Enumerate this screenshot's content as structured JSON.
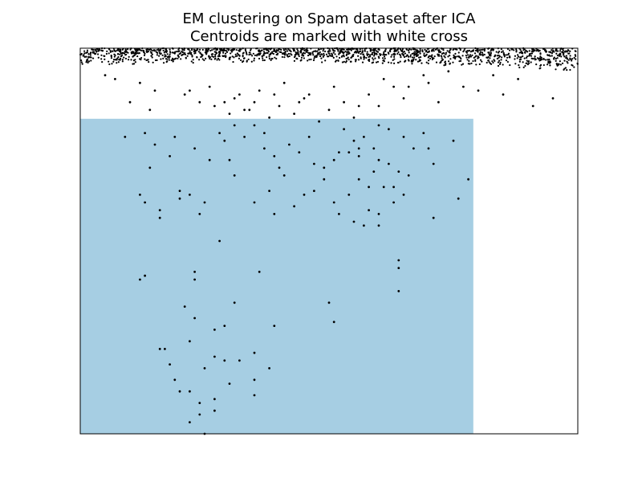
{
  "chart_data": {
    "type": "scatter",
    "title": "EM clustering on Spam dataset after ICA",
    "subtitle": "Centroids are marked with white cross",
    "xlabel": "",
    "ylabel": "",
    "xlim": [
      0,
      1
    ],
    "ylim": [
      0,
      1
    ],
    "axes_ticks": "hidden",
    "grid": false,
    "colors": {
      "region_cluster_0": "#ffffff",
      "region_cluster_1": "#a6cee3",
      "points": "#000000",
      "axes": "#000000"
    },
    "regions": [
      {
        "cluster": 1,
        "x": [
          0.0,
          0.79
        ],
        "y": [
          0.0,
          0.817
        ]
      }
    ],
    "band": {
      "x_start": 0.0,
      "x_end": 1.0,
      "y_low_start": 0.955,
      "y_low_end": 0.94,
      "y_top": 1.0,
      "count": 1500
    },
    "points": [
      [
        0.05,
        0.93
      ],
      [
        0.07,
        0.92
      ],
      [
        0.12,
        0.91
      ],
      [
        0.15,
        0.89
      ],
      [
        0.21,
        0.88
      ],
      [
        0.24,
        0.86
      ],
      [
        0.27,
        0.85
      ],
      [
        0.3,
        0.83
      ],
      [
        0.33,
        0.84
      ],
      [
        0.35,
        0.86
      ],
      [
        0.38,
        0.82
      ],
      [
        0.4,
        0.85
      ],
      [
        0.43,
        0.83
      ],
      [
        0.45,
        0.87
      ],
      [
        0.48,
        0.81
      ],
      [
        0.5,
        0.84
      ],
      [
        0.53,
        0.86
      ],
      [
        0.55,
        0.82
      ],
      [
        0.58,
        0.88
      ],
      [
        0.6,
        0.85
      ],
      [
        0.63,
        0.9
      ],
      [
        0.65,
        0.87
      ],
      [
        0.7,
        0.91
      ],
      [
        0.72,
        0.86
      ],
      [
        0.77,
        0.9
      ],
      [
        0.83,
        0.93
      ],
      [
        0.88,
        0.92
      ],
      [
        0.91,
        0.85
      ],
      [
        0.85,
        0.88
      ],
      [
        0.1,
        0.86
      ],
      [
        0.14,
        0.84
      ],
      [
        0.22,
        0.89
      ],
      [
        0.26,
        0.9
      ],
      [
        0.31,
        0.87
      ],
      [
        0.36,
        0.89
      ],
      [
        0.41,
        0.91
      ],
      [
        0.46,
        0.88
      ],
      [
        0.51,
        0.9
      ],
      [
        0.56,
        0.85
      ],
      [
        0.61,
        0.92
      ],
      [
        0.66,
        0.9
      ],
      [
        0.69,
        0.93
      ],
      [
        0.74,
        0.94
      ],
      [
        0.8,
        0.89
      ],
      [
        0.95,
        0.87
      ],
      [
        0.32,
        0.88
      ],
      [
        0.34,
        0.84
      ],
      [
        0.29,
        0.86
      ],
      [
        0.39,
        0.88
      ],
      [
        0.44,
        0.86
      ],
      [
        0.13,
        0.78
      ],
      [
        0.15,
        0.75
      ],
      [
        0.09,
        0.77
      ],
      [
        0.19,
        0.77
      ],
      [
        0.23,
        0.74
      ],
      [
        0.18,
        0.72
      ],
      [
        0.14,
        0.69
      ],
      [
        0.2,
        0.63
      ],
      [
        0.26,
        0.71
      ],
      [
        0.28,
        0.78
      ],
      [
        0.29,
        0.76
      ],
      [
        0.31,
        0.8
      ],
      [
        0.33,
        0.77
      ],
      [
        0.3,
        0.71
      ],
      [
        0.35,
        0.8
      ],
      [
        0.37,
        0.78
      ],
      [
        0.37,
        0.74
      ],
      [
        0.39,
        0.72
      ],
      [
        0.4,
        0.69
      ],
      [
        0.41,
        0.67
      ],
      [
        0.42,
        0.75
      ],
      [
        0.44,
        0.73
      ],
      [
        0.46,
        0.77
      ],
      [
        0.47,
        0.7
      ],
      [
        0.49,
        0.66
      ],
      [
        0.45,
        0.62
      ],
      [
        0.38,
        0.63
      ],
      [
        0.35,
        0.6
      ],
      [
        0.43,
        0.59
      ],
      [
        0.47,
        0.63
      ],
      [
        0.49,
        0.69
      ],
      [
        0.51,
        0.71
      ],
      [
        0.52,
        0.73
      ],
      [
        0.54,
        0.73
      ],
      [
        0.55,
        0.76
      ],
      [
        0.56,
        0.72
      ],
      [
        0.57,
        0.77
      ],
      [
        0.59,
        0.74
      ],
      [
        0.6,
        0.71
      ],
      [
        0.62,
        0.7
      ],
      [
        0.64,
        0.68
      ],
      [
        0.66,
        0.67
      ],
      [
        0.58,
        0.64
      ],
      [
        0.54,
        0.62
      ],
      [
        0.51,
        0.6
      ],
      [
        0.52,
        0.57
      ],
      [
        0.55,
        0.55
      ],
      [
        0.58,
        0.58
      ],
      [
        0.6,
        0.57
      ],
      [
        0.63,
        0.6
      ],
      [
        0.56,
        0.66
      ],
      [
        0.59,
        0.68
      ],
      [
        0.61,
        0.64
      ],
      [
        0.63,
        0.64
      ],
      [
        0.57,
        0.54
      ],
      [
        0.6,
        0.54
      ],
      [
        0.65,
        0.62
      ],
      [
        0.67,
        0.74
      ],
      [
        0.69,
        0.78
      ],
      [
        0.71,
        0.7
      ],
      [
        0.71,
        0.56
      ],
      [
        0.75,
        0.76
      ],
      [
        0.76,
        0.61
      ],
      [
        0.78,
        0.66
      ],
      [
        0.56,
        0.74
      ],
      [
        0.53,
        0.79
      ],
      [
        0.6,
        0.8
      ],
      [
        0.62,
        0.79
      ],
      [
        0.65,
        0.77
      ],
      [
        0.7,
        0.74
      ],
      [
        0.12,
        0.62
      ],
      [
        0.13,
        0.6
      ],
      [
        0.16,
        0.58
      ],
      [
        0.16,
        0.56
      ],
      [
        0.2,
        0.61
      ],
      [
        0.22,
        0.62
      ],
      [
        0.24,
        0.57
      ],
      [
        0.25,
        0.6
      ],
      [
        0.31,
        0.67
      ],
      [
        0.39,
        0.57
      ],
      [
        0.28,
        0.5
      ],
      [
        0.13,
        0.41
      ],
      [
        0.12,
        0.4
      ],
      [
        0.23,
        0.42
      ],
      [
        0.23,
        0.4
      ],
      [
        0.36,
        0.42
      ],
      [
        0.64,
        0.43
      ],
      [
        0.64,
        0.45
      ],
      [
        0.21,
        0.33
      ],
      [
        0.23,
        0.3
      ],
      [
        0.31,
        0.34
      ],
      [
        0.29,
        0.28
      ],
      [
        0.27,
        0.27
      ],
      [
        0.39,
        0.28
      ],
      [
        0.51,
        0.29
      ],
      [
        0.22,
        0.24
      ],
      [
        0.16,
        0.22
      ],
      [
        0.17,
        0.22
      ],
      [
        0.18,
        0.18
      ],
      [
        0.27,
        0.2
      ],
      [
        0.29,
        0.19
      ],
      [
        0.35,
        0.21
      ],
      [
        0.25,
        0.17
      ],
      [
        0.3,
        0.13
      ],
      [
        0.35,
        0.14
      ],
      [
        0.38,
        0.17
      ],
      [
        0.19,
        0.14
      ],
      [
        0.2,
        0.11
      ],
      [
        0.22,
        0.11
      ],
      [
        0.24,
        0.08
      ],
      [
        0.27,
        0.09
      ],
      [
        0.35,
        0.1
      ],
      [
        0.27,
        0.06
      ],
      [
        0.24,
        0.05
      ],
      [
        0.22,
        0.03
      ],
      [
        0.25,
        0.0
      ],
      [
        0.5,
        0.34
      ],
      [
        0.64,
        0.37
      ],
      [
        0.32,
        0.19
      ]
    ]
  }
}
